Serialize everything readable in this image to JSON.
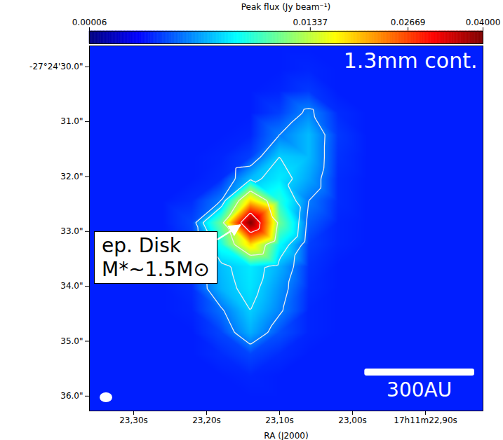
{
  "chart_data": {
    "type": "heatmap",
    "title": "1.3mm cont.",
    "x_label": "RA (J2000)",
    "xlim": [
      23.3606,
      22.8212
    ],
    "xticks": [
      {
        "value": 23.3,
        "label": "23,30s"
      },
      {
        "value": 23.2,
        "label": "23,20s"
      },
      {
        "value": 23.1,
        "label": "23,10s"
      },
      {
        "value": 23.0,
        "label": "23,00s"
      },
      {
        "value": 22.9,
        "label": "17h11m22,90s"
      }
    ],
    "ylim": [
      29.62,
      36.27
    ],
    "yticks": [
      {
        "value": 30,
        "label": "-27°24'30.0\""
      },
      {
        "value": 31,
        "label": "31.0\""
      },
      {
        "value": 32,
        "label": "32.0\""
      },
      {
        "value": 33,
        "label": "33.0\""
      },
      {
        "value": 34,
        "label": "34.0\""
      },
      {
        "value": 35,
        "label": "35.0\""
      },
      {
        "value": 36,
        "label": "36.0\""
      }
    ],
    "ra": [
      23.38,
      23.34,
      23.3,
      23.26,
      23.22,
      23.18,
      23.14,
      23.1,
      23.06,
      23.02,
      22.98,
      22.94,
      22.9,
      22.86,
      22.82,
      22.78
    ],
    "dec": [
      29.24,
      29.64,
      30.04,
      30.44,
      30.84,
      31.24,
      31.64,
      32.04,
      32.44,
      32.84,
      33.24,
      33.64,
      34.04,
      34.44,
      34.84,
      35.24,
      35.64,
      36.04,
      36.44
    ],
    "flux": [
      [
        0.0014,
        0.0014,
        0.0014,
        0.0014,
        0.0014,
        0.0014,
        0.0014,
        0.0014,
        0.0014,
        0.0014,
        0.0014,
        0.0014,
        0.0014,
        0.0014,
        0.0014,
        0.0014
      ],
      [
        0.0014,
        0.0014,
        0.0014,
        0.0014,
        0.0014,
        0.0014,
        0.0014,
        0.0014,
        0.0014,
        0.0014,
        0.0014,
        0.0014,
        0.0014,
        0.0014,
        0.0014,
        0.0014
      ],
      [
        0.0014,
        0.0014,
        0.0014,
        0.0014,
        0.0014,
        0.0014,
        0.0014,
        0.0014,
        0.0015,
        0.0014,
        0.0014,
        0.0014,
        0.0014,
        0.0014,
        0.0014,
        0.0014
      ],
      [
        0.0014,
        0.0014,
        0.0014,
        0.0014,
        0.0014,
        0.0014,
        0.0014,
        0.0015,
        0.0018,
        0.0014,
        0.0014,
        0.0014,
        0.0014,
        0.0014,
        0.0014,
        0.0014
      ],
      [
        0.0014,
        0.0014,
        0.0014,
        0.0014,
        0.0014,
        0.0014,
        0.0014,
        0.0019,
        0.0033,
        0.0016,
        0.0014,
        0.0014,
        0.0014,
        0.0014,
        0.0014,
        0.0014
      ],
      [
        0.0014,
        0.0014,
        0.0014,
        0.0014,
        0.0014,
        0.0014,
        0.0015,
        0.003,
        0.0045,
        0.0018,
        0.0014,
        0.0014,
        0.0014,
        0.0014,
        0.0014,
        0.0014
      ],
      [
        0.0014,
        0.0014,
        0.0014,
        0.0014,
        0.0014,
        0.0015,
        0.0019,
        0.005,
        0.0045,
        0.0017,
        0.0014,
        0.0014,
        0.0014,
        0.0014,
        0.0014,
        0.0014
      ],
      [
        0.0014,
        0.0014,
        0.0014,
        0.0014,
        0.0014,
        0.0016,
        0.0045,
        0.0058,
        0.004,
        0.0016,
        0.0014,
        0.0014,
        0.0014,
        0.0014,
        0.0014,
        0.0014
      ],
      [
        0.0014,
        0.0014,
        0.0014,
        0.0014,
        0.0016,
        0.003,
        0.018,
        0.0075,
        0.003,
        0.0016,
        0.0014,
        0.0014,
        0.0014,
        0.0014,
        0.0014,
        0.0014
      ],
      [
        0.0014,
        0.0014,
        0.0014,
        0.0014,
        0.002,
        0.01,
        0.04,
        0.01,
        0.0024,
        0.0015,
        0.0014,
        0.0014,
        0.0014,
        0.0014,
        0.0014,
        0.0014
      ],
      [
        0.0014,
        0.0014,
        0.0014,
        0.0014,
        0.0018,
        0.007,
        0.018,
        0.0065,
        0.0019,
        0.0015,
        0.0014,
        0.0014,
        0.0014,
        0.0014,
        0.0014,
        0.0014
      ],
      [
        0.0014,
        0.0014,
        0.0014,
        0.0014,
        0.0017,
        0.0046,
        0.0058,
        0.0042,
        0.0017,
        0.0014,
        0.0014,
        0.0014,
        0.0014,
        0.0014,
        0.0014,
        0.0014
      ],
      [
        0.0014,
        0.0014,
        0.0014,
        0.0014,
        0.0016,
        0.0043,
        0.0056,
        0.0036,
        0.0016,
        0.0014,
        0.0014,
        0.0014,
        0.0014,
        0.0014,
        0.0014,
        0.0014
      ],
      [
        0.0014,
        0.0014,
        0.0014,
        0.0014,
        0.0015,
        0.0028,
        0.005,
        0.0032,
        0.0015,
        0.0014,
        0.0014,
        0.0014,
        0.0014,
        0.0014,
        0.0014,
        0.0014
      ],
      [
        0.0014,
        0.0014,
        0.0014,
        0.0014,
        0.0014,
        0.002,
        0.0042,
        0.0022,
        0.0015,
        0.0014,
        0.0014,
        0.0014,
        0.0014,
        0.0014,
        0.0014,
        0.0014
      ],
      [
        0.0014,
        0.0014,
        0.0014,
        0.0014,
        0.0014,
        0.0016,
        0.002,
        0.0016,
        0.0014,
        0.0014,
        0.0014,
        0.0014,
        0.0014,
        0.0014,
        0.0014,
        0.0014
      ],
      [
        0.0014,
        0.0014,
        0.0014,
        0.0014,
        0.0014,
        0.0014,
        0.0015,
        0.0014,
        0.0014,
        0.0014,
        0.0014,
        0.0014,
        0.0014,
        0.0014,
        0.0014,
        0.0014
      ],
      [
        0.0014,
        0.0014,
        0.0014,
        0.0014,
        0.0014,
        0.0014,
        0.0014,
        0.0014,
        0.0014,
        0.0014,
        0.0014,
        0.0014,
        0.0014,
        0.0014,
        0.0014,
        0.0014
      ],
      [
        0.0014,
        0.0014,
        0.0014,
        0.0014,
        0.0014,
        0.0014,
        0.0014,
        0.0014,
        0.0014,
        0.0014,
        0.0014,
        0.0014,
        0.0014,
        0.0014,
        0.0014,
        0.0014
      ]
    ],
    "contour_levels": [
      0.003,
      0.005,
      0.012,
      0.03
    ],
    "colorbar": {
      "label": "Peak flux (Jy beam⁻¹)",
      "range": [
        6e-05,
        0.04
      ],
      "ticks": [
        6e-05,
        0.01337,
        0.02669,
        {
          "value": 0.04,
          "label": "0.04000"
        }
      ]
    },
    "annotation": [
      "ep. Disk",
      "M*~1.5M⊙"
    ],
    "scale_bar": {
      "label": "300AU",
      "length_arcsec": 2.0
    },
    "beam": {
      "major_arcsec": 0.23,
      "minor_arcsec": 0.18
    }
  }
}
